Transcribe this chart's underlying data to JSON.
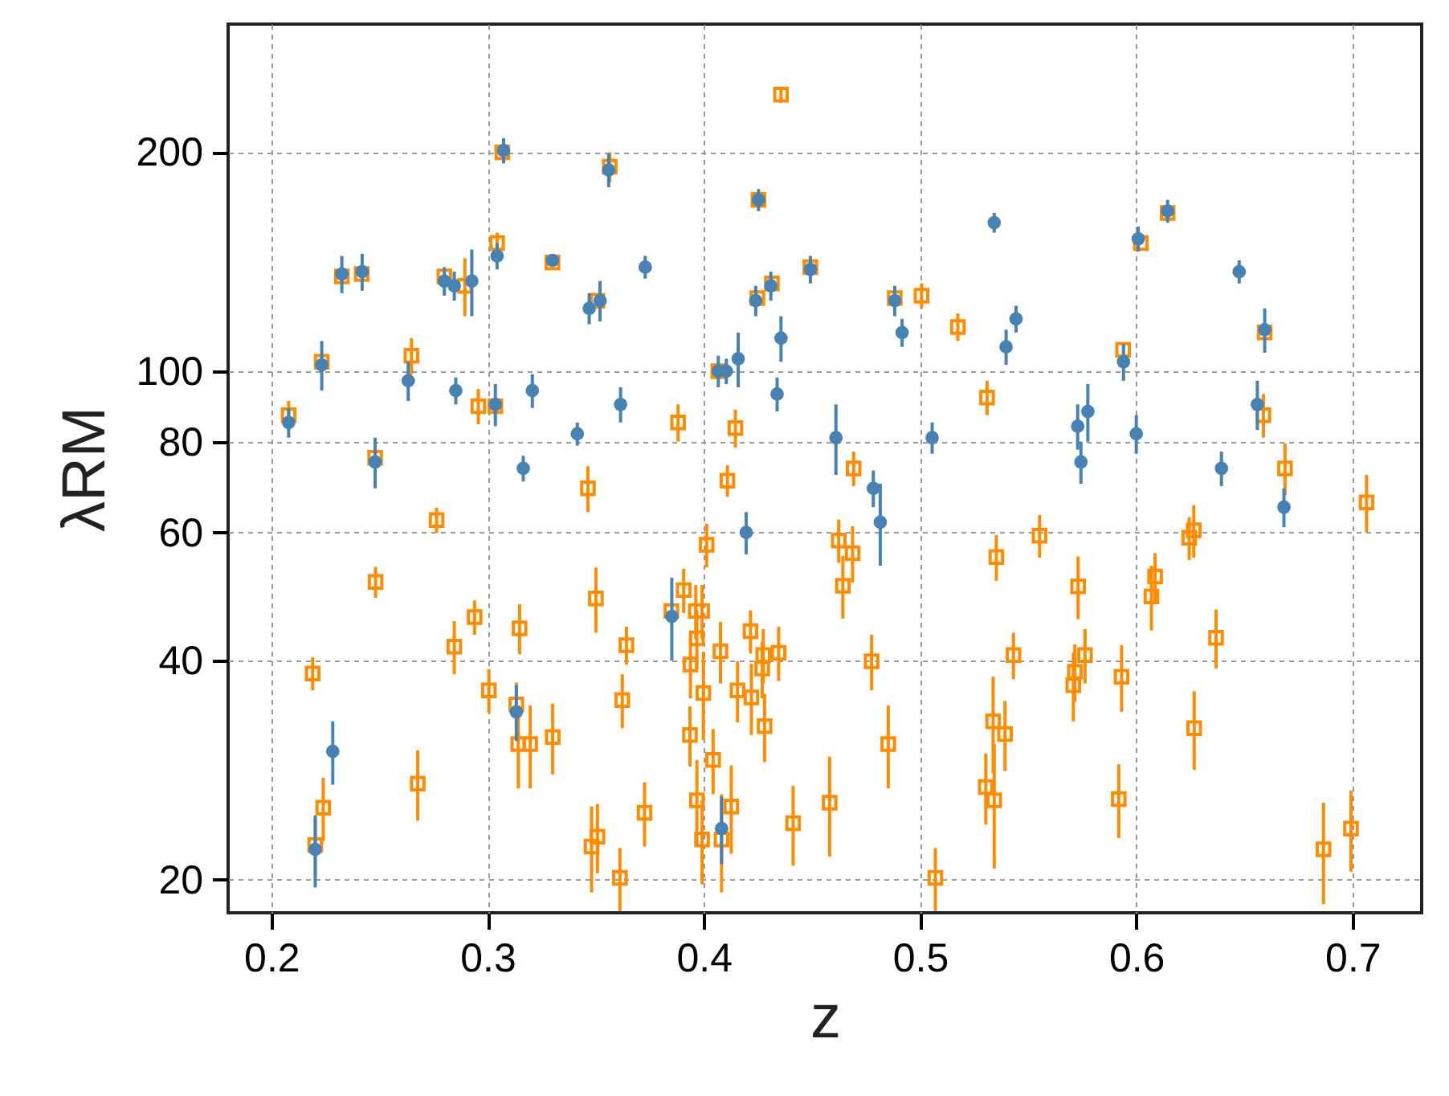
{
  "chart_data": {
    "type": "scatter",
    "xlabel": "z",
    "ylabel": "λRM",
    "log": "y",
    "grid": true,
    "xlim": [
      0.18,
      0.732
    ],
    "xticks": [
      0.2,
      0.3,
      0.4,
      0.5,
      0.6,
      0.7
    ],
    "ylim": [
      18,
      300
    ],
    "yticks": [
      20,
      40,
      60,
      80,
      100,
      200
    ],
    "series": [
      {
        "color": "#ff8c00",
        "marker": "square",
        "x": [
          0.3068,
          0.3565,
          0.3044,
          0.2326,
          0.2418,
          0.28,
          0.2895,
          0.33,
          0.3508,
          0.2233,
          0.2648,
          0.2957,
          0.3036,
          0.208,
          0.248,
          0.4357,
          0.4253,
          0.4493,
          0.4315,
          0.4248,
          0.4883,
          0.5007,
          0.5175,
          0.4067,
          0.531,
          0.3881,
          0.4146,
          0.4693,
          0.6145,
          0.6021,
          0.6594,
          0.5939,
          0.6588,
          0.6688,
          0.7065,
          0.5553,
          0.5731,
          0.6087,
          0.607,
          0.6245,
          0.6266,
          0.5763,
          0.5716,
          0.5709,
          0.5932,
          0.6369,
          0.6268,
          0.5919,
          0.6866,
          0.6993,
          0.4109,
          0.4013,
          0.4624,
          0.4688,
          0.4643,
          0.5353,
          0.5432,
          0.3907,
          0.385,
          0.3963,
          0.3992,
          0.3968,
          0.3938,
          0.4077,
          0.3998,
          0.4216,
          0.4275,
          0.427,
          0.4346,
          0.4156,
          0.422,
          0.4281,
          0.4776,
          0.4853,
          0.3936,
          0.4043,
          0.3726,
          0.3968,
          0.3992,
          0.4082,
          0.4127,
          0.4413,
          0.4582,
          0.5338,
          0.5393,
          0.5304,
          0.5343,
          0.5071,
          0.3464,
          0.2764,
          0.2482,
          0.294,
          0.2846,
          0.3148,
          0.3501,
          0.3642,
          0.2191,
          0.3006,
          0.3133,
          0.3623,
          0.3142,
          0.3197,
          0.3301,
          0.224,
          0.2203,
          0.2677,
          0.3481,
          0.3508,
          0.3612
        ],
        "values": [
          200,
          191,
          150,
          135,
          136,
          135,
          131,
          141,
          125,
          103,
          105,
          89.5,
          89.5,
          87,
          76,
          240,
          172,
          139,
          132,
          126,
          126,
          127,
          115,
          100,
          92,
          85,
          83.5,
          73.5,
          165,
          150,
          113,
          107,
          87,
          73.5,
          66,
          59.4,
          50.6,
          52.2,
          49,
          59,
          60.4,
          40.7,
          38.6,
          37,
          38,
          43,
          32.3,
          25.8,
          22,
          23.5,
          70.7,
          57.7,
          58.5,
          56.2,
          50.7,
          55.5,
          40.7,
          50,
          46.8,
          46.8,
          46.8,
          42.9,
          39.5,
          41.2,
          36.1,
          43.9,
          40.7,
          39,
          41,
          36.4,
          35.6,
          32.5,
          39.9,
          30.7,
          31.6,
          29.2,
          24.7,
          25.7,
          22.7,
          22.7,
          25.2,
          23.9,
          25.5,
          33,
          31.7,
          26.8,
          25.7,
          20.1,
          69,
          62.4,
          51.3,
          45.9,
          41.8,
          44.3,
          48.7,
          42,
          38.4,
          36.4,
          34.8,
          35.3,
          30.7,
          30.7,
          31.4,
          25.1,
          22.3,
          27.1,
          22.2,
          22.9,
          20.1
        ],
        "errors": [
          null,
          9,
          5,
          null,
          null,
          null,
          12,
          null,
          null,
          null,
          6,
          5,
          null,
          4,
          null,
          6,
          null,
          null,
          null,
          null,
          null,
          5,
          5,
          null,
          5,
          5,
          5,
          4,
          null,
          null,
          null,
          null,
          6,
          6,
          6,
          4,
          5,
          4,
          5,
          4,
          5,
          3.5,
          3.5,
          4,
          4,
          4,
          4,
          3,
          3.5,
          3,
          3.5,
          4,
          4,
          5,
          5,
          4,
          3,
          3.5,
          null,
          4,
          4,
          4,
          4,
          4,
          5,
          3,
          3.5,
          3.5,
          3.5,
          3.5,
          4,
          3.5,
          3.5,
          4,
          3,
          3,
          2.5,
          3.5,
          3,
          3.5,
          3.5,
          3,
          4,
          5,
          3.5,
          3,
          5,
          2,
          5,
          2.5,
          2.5,
          2.5,
          3.5,
          3.5,
          5,
          2.5,
          2,
          2.5,
          2.5,
          3,
          4,
          4,
          3.5,
          2.5,
          2,
          3,
          3,
          2.5,
          2
        ]
      },
      {
        "color": "#4682b4",
        "marker": "circle",
        "x": [
          0.3074,
          0.356,
          0.3044,
          0.2326,
          0.242,
          0.28,
          0.2846,
          0.2927,
          0.33,
          0.347,
          0.352,
          0.2233,
          0.2633,
          0.2853,
          0.3036,
          0.3207,
          0.3615,
          0.208,
          0.3415,
          0.3165,
          0.248,
          0.3729,
          0.4253,
          0.4493,
          0.431,
          0.424,
          0.4357,
          0.4159,
          0.4067,
          0.4104,
          0.4339,
          0.4611,
          0.4883,
          0.4917,
          0.5056,
          0.5343,
          0.5444,
          0.5398,
          0.6145,
          0.6009,
          0.6476,
          0.6594,
          0.5941,
          0.5776,
          0.5729,
          0.656,
          0.6,
          0.5744,
          0.6394,
          0.6683,
          0.4784,
          0.4816,
          0.4196,
          0.3852,
          0.4082,
          0.3133,
          0.2284,
          0.2203
        ],
        "values": [
          201,
          189,
          144,
          136,
          137,
          133,
          131,
          133,
          142,
          122,
          125,
          102,
          97,
          94,
          90,
          94,
          90,
          85,
          82,
          73.5,
          75,
          139,
          172,
          138,
          131,
          125,
          111,
          104,
          100,
          100,
          93,
          81,
          125,
          113,
          81,
          160,
          118,
          108,
          166,
          152,
          137,
          114,
          103,
          88,
          84,
          90,
          82,
          75,
          73.5,
          65,
          69,
          62,
          60,
          46,
          23.5,
          34,
          30,
          22
        ],
        "errors": [
          8,
          10,
          6,
          8,
          8,
          6,
          6,
          14,
          null,
          6,
          8,
          8,
          6,
          4,
          6,
          5,
          5,
          4,
          3,
          3,
          6,
          5,
          6,
          6,
          6,
          6,
          8,
          9,
          5,
          4,
          5,
          9,
          6,
          5,
          4,
          5,
          5,
          6,
          6,
          6,
          5,
          8,
          6,
          8,
          6,
          7,
          5,
          5,
          4,
          4,
          4,
          8,
          4,
          6,
          2.5,
          3,
          3,
          2.5
        ]
      }
    ]
  }
}
